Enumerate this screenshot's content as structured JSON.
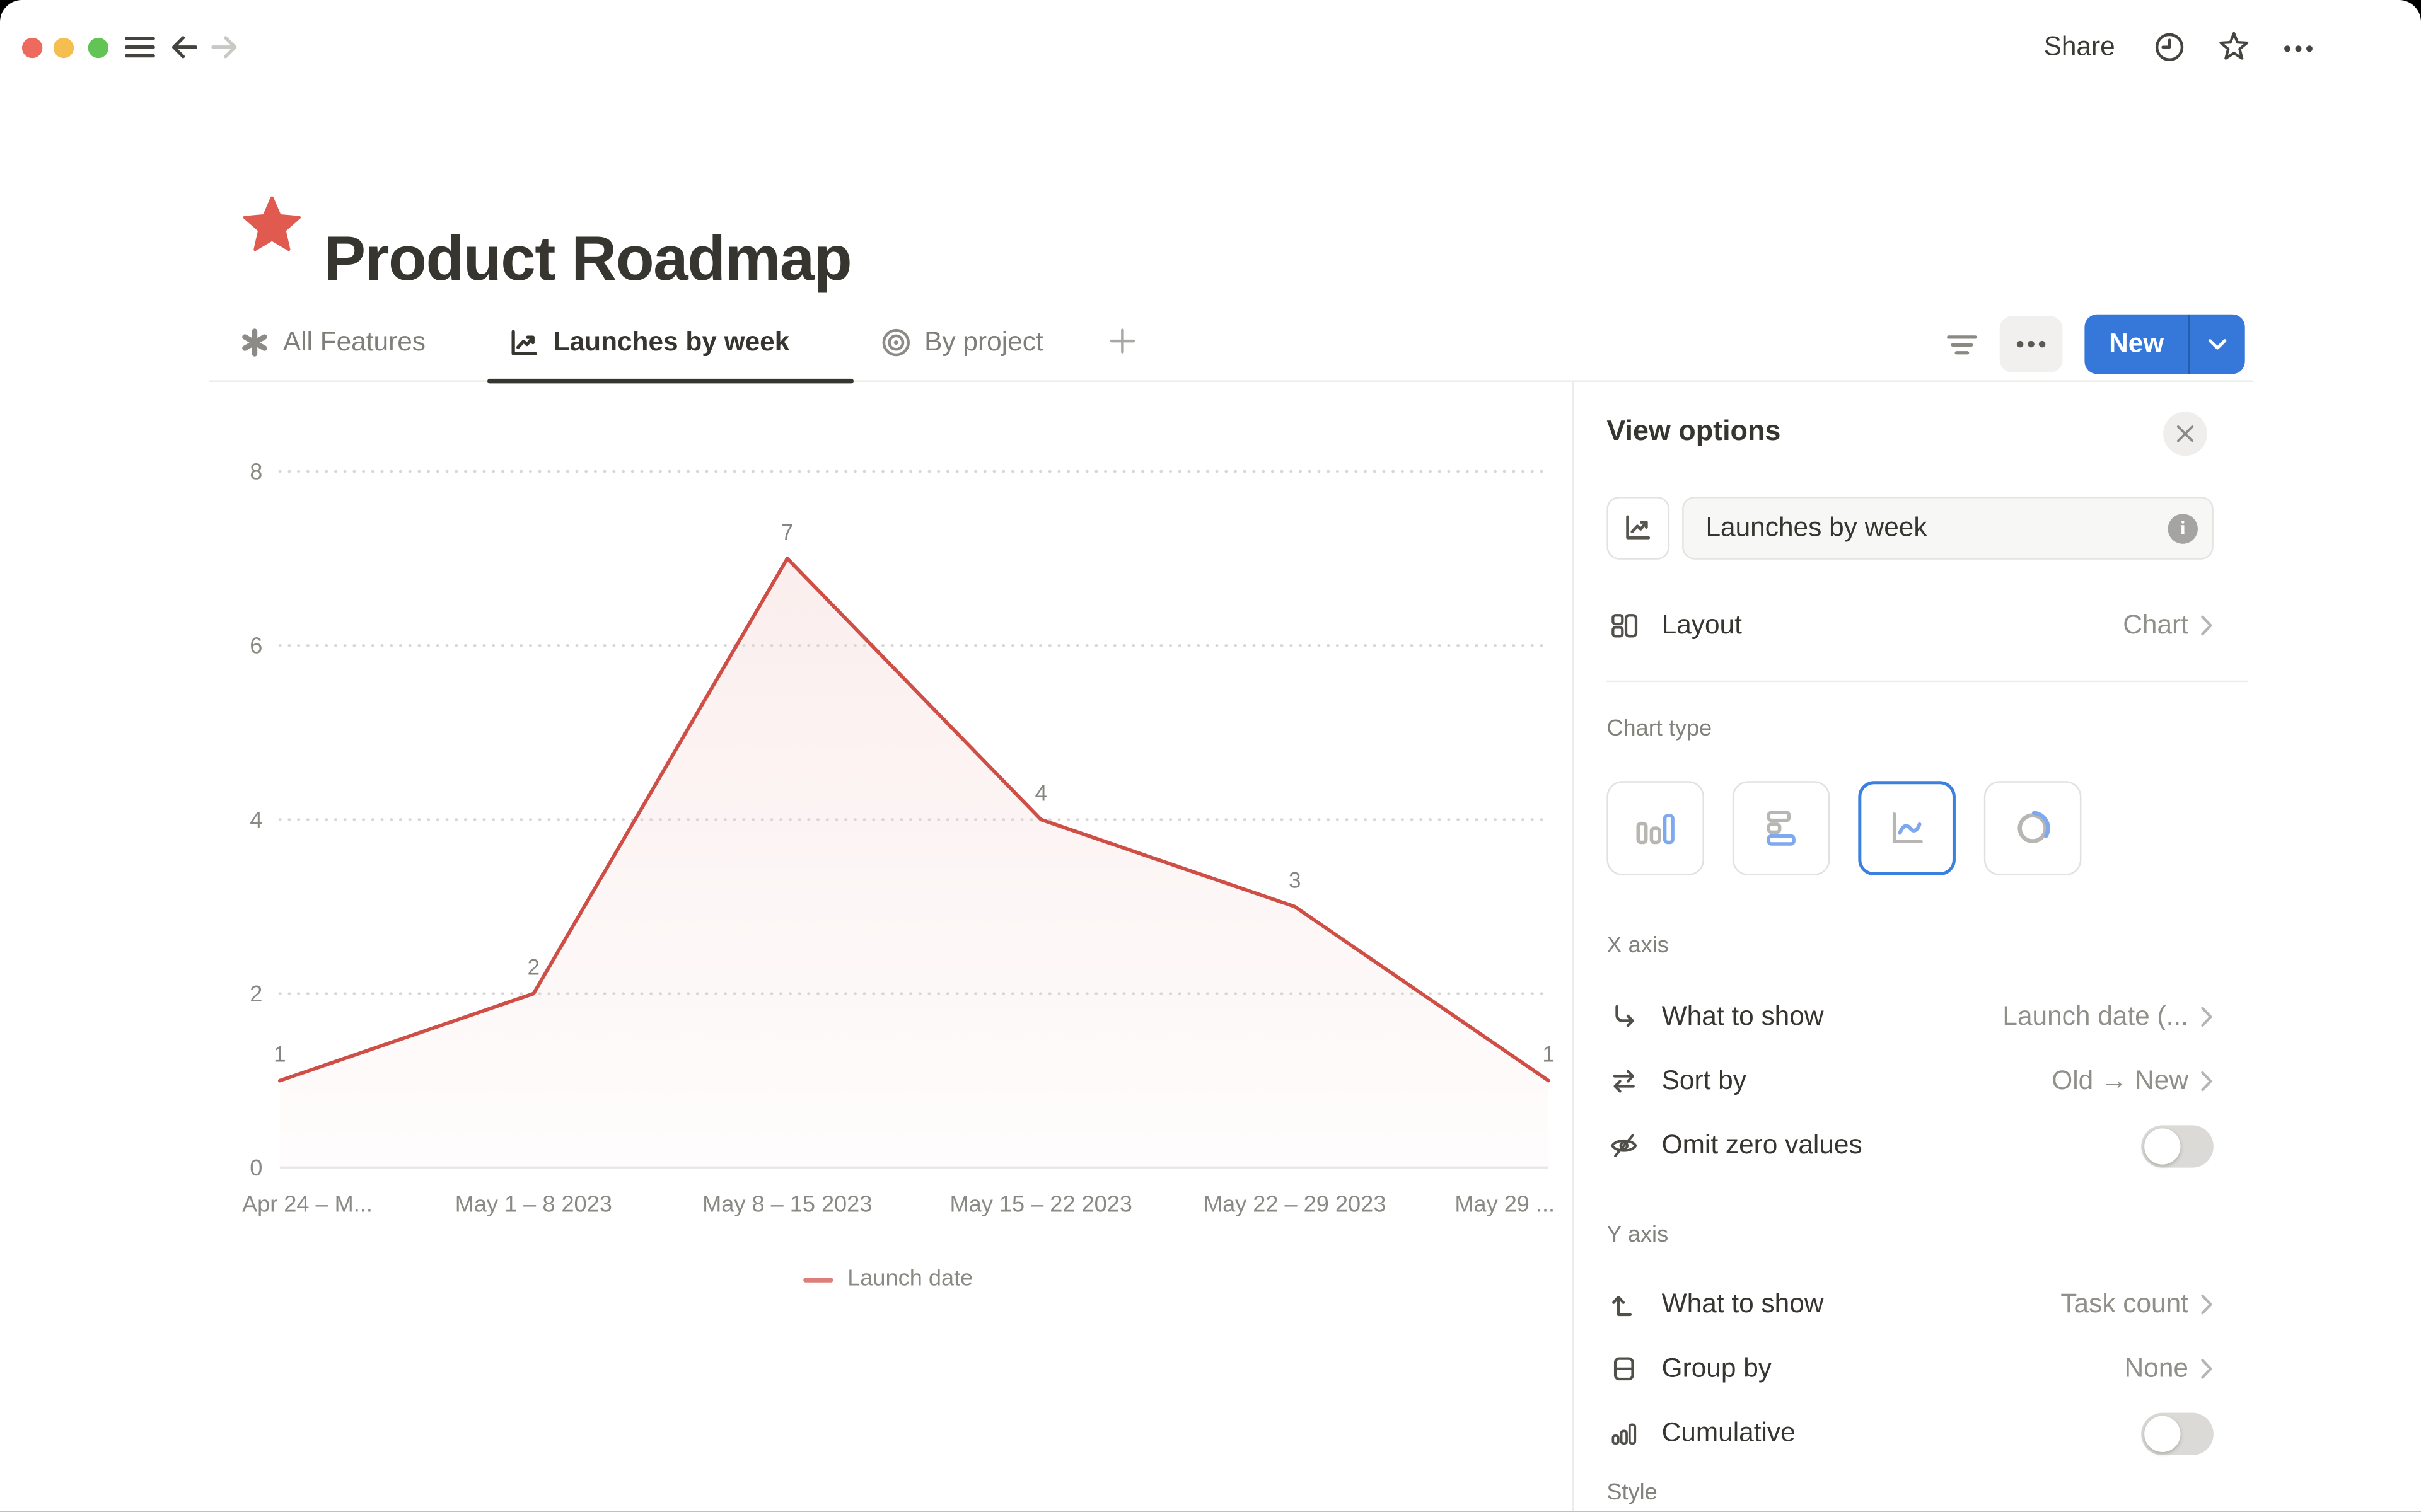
{
  "topbar": {
    "share_label": "Share",
    "icons": [
      "hamburger-icon",
      "back-arrow-icon",
      "forward-arrow-icon",
      "clock-icon",
      "star-icon",
      "ellipsis-icon"
    ]
  },
  "page": {
    "title": "Product Roadmap",
    "title_icon": "red-star-icon"
  },
  "tabs": {
    "items": [
      {
        "label": "All Features",
        "icon": "asterisk-icon",
        "active": false
      },
      {
        "label": "Launches by week",
        "icon": "line-chart-icon",
        "active": true
      },
      {
        "label": "By project",
        "icon": "target-icon",
        "active": false
      }
    ],
    "add_icon": "plus-icon"
  },
  "toolbar": {
    "new_label": "New",
    "icons": [
      "filter-lines-icon",
      "ellipsis-icon",
      "chevron-down-icon"
    ]
  },
  "chart_data": {
    "type": "area",
    "title": "",
    "categories": [
      "Apr 24 – M...",
      "May 1 – 8 2023",
      "May 8 – 15 2023",
      "May 15 – 22 2023",
      "May 22 – 29 2023",
      "May 29 ..."
    ],
    "series": [
      {
        "name": "Launch date",
        "values": [
          1,
          2,
          7,
          4,
          3,
          1
        ]
      }
    ],
    "y_ticks": [
      0,
      2,
      4,
      6,
      8
    ],
    "ylim": [
      0,
      8
    ],
    "xlabel": "",
    "ylabel": "",
    "grid": "dotted-horizontal",
    "legend_position": "bottom",
    "line_color": "#cf4e45",
    "point_labels": true
  },
  "panel": {
    "title": "View options",
    "view_name": {
      "value": "Launches by week",
      "icon": "line-chart-icon",
      "info_icon": "info-icon"
    },
    "layout": {
      "label": "Layout",
      "value": "Chart",
      "icon": "layout-icon"
    },
    "chart_type": {
      "label": "Chart type",
      "options": [
        {
          "name": "vertical-bar",
          "selected": false
        },
        {
          "name": "horizontal-bar",
          "selected": false
        },
        {
          "name": "line",
          "selected": true
        },
        {
          "name": "donut",
          "selected": false
        }
      ]
    },
    "x_axis": {
      "label": "X axis",
      "rows": [
        {
          "label": "What to show",
          "value": "Launch date (...",
          "icon": "corner-down-right-icon",
          "control": "link"
        },
        {
          "label": "Sort by",
          "value": "Old → New",
          "icon": "swap-arrows-icon",
          "control": "link"
        },
        {
          "label": "Omit zero values",
          "icon": "eye-off-icon",
          "control": "toggle",
          "toggle_on": false
        }
      ]
    },
    "y_axis": {
      "label": "Y axis",
      "rows": [
        {
          "label": "What to show",
          "value": "Task count",
          "icon": "arrow-up-from-line-icon",
          "control": "link"
        },
        {
          "label": "Group by",
          "value": "None",
          "icon": "split-square-icon",
          "control": "link"
        },
        {
          "label": "Cumulative",
          "icon": "mini-bars-icon",
          "control": "toggle",
          "toggle_on": false
        }
      ]
    },
    "style_label": "Style"
  },
  "colors": {
    "accent_blue": "#3578da",
    "chart_red": "#cf4e45",
    "title_star_red": "#e05a50"
  }
}
